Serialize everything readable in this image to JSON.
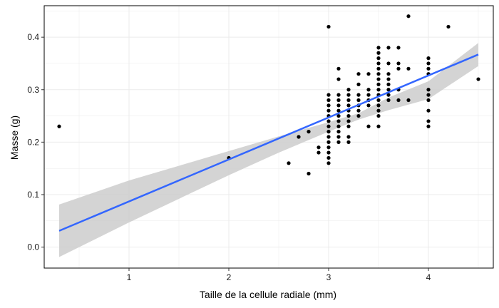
{
  "chart_data": {
    "type": "scatter",
    "title": "",
    "xlabel": "Taille de la cellule radiale (mm)",
    "ylabel": "Masse (g)",
    "xlim": [
      0.15,
      4.65
    ],
    "ylim": [
      -0.04,
      0.46
    ],
    "x_ticks": [
      1,
      2,
      3,
      4
    ],
    "y_ticks": [
      0.0,
      0.1,
      0.2,
      0.3,
      0.4
    ],
    "y_tick_labels": [
      "0.0",
      "0.1",
      "0.2",
      "0.3",
      "0.4"
    ],
    "grid": true,
    "legend": "none",
    "colors": {
      "points": "#000000",
      "fit_line": "#3366ff",
      "confidence_band": "#cccccc",
      "grid": "#ebebeb",
      "panel_border": "#000000"
    },
    "points": [
      [
        0.3,
        0.23
      ],
      [
        2.0,
        0.17
      ],
      [
        2.6,
        0.16
      ],
      [
        2.7,
        0.21
      ],
      [
        2.8,
        0.14
      ],
      [
        2.8,
        0.22
      ],
      [
        2.9,
        0.18
      ],
      [
        2.9,
        0.19
      ],
      [
        3.0,
        0.42
      ],
      [
        3.0,
        0.29
      ],
      [
        3.0,
        0.28
      ],
      [
        3.0,
        0.27
      ],
      [
        3.0,
        0.26
      ],
      [
        3.0,
        0.25
      ],
      [
        3.0,
        0.24
      ],
      [
        3.0,
        0.23
      ],
      [
        3.0,
        0.22
      ],
      [
        3.0,
        0.21
      ],
      [
        3.0,
        0.2
      ],
      [
        3.0,
        0.19
      ],
      [
        3.0,
        0.18
      ],
      [
        3.0,
        0.17
      ],
      [
        3.0,
        0.16
      ],
      [
        3.1,
        0.34
      ],
      [
        3.1,
        0.32
      ],
      [
        3.1,
        0.29
      ],
      [
        3.1,
        0.28
      ],
      [
        3.1,
        0.27
      ],
      [
        3.1,
        0.26
      ],
      [
        3.1,
        0.25
      ],
      [
        3.1,
        0.24
      ],
      [
        3.1,
        0.23
      ],
      [
        3.1,
        0.22
      ],
      [
        3.1,
        0.21
      ],
      [
        3.1,
        0.2
      ],
      [
        3.2,
        0.3
      ],
      [
        3.2,
        0.29
      ],
      [
        3.2,
        0.28
      ],
      [
        3.2,
        0.27
      ],
      [
        3.2,
        0.26
      ],
      [
        3.2,
        0.25
      ],
      [
        3.2,
        0.24
      ],
      [
        3.2,
        0.23
      ],
      [
        3.2,
        0.21
      ],
      [
        3.2,
        0.2
      ],
      [
        3.3,
        0.33
      ],
      [
        3.3,
        0.31
      ],
      [
        3.3,
        0.29
      ],
      [
        3.3,
        0.28
      ],
      [
        3.3,
        0.27
      ],
      [
        3.3,
        0.26
      ],
      [
        3.3,
        0.25
      ],
      [
        3.4,
        0.33
      ],
      [
        3.4,
        0.3
      ],
      [
        3.4,
        0.29
      ],
      [
        3.4,
        0.28
      ],
      [
        3.4,
        0.27
      ],
      [
        3.4,
        0.23
      ],
      [
        3.5,
        0.38
      ],
      [
        3.5,
        0.37
      ],
      [
        3.5,
        0.36
      ],
      [
        3.5,
        0.35
      ],
      [
        3.5,
        0.34
      ],
      [
        3.5,
        0.33
      ],
      [
        3.5,
        0.32
      ],
      [
        3.5,
        0.31
      ],
      [
        3.5,
        0.3
      ],
      [
        3.5,
        0.29
      ],
      [
        3.5,
        0.28
      ],
      [
        3.5,
        0.27
      ],
      [
        3.5,
        0.26
      ],
      [
        3.5,
        0.25
      ],
      [
        3.5,
        0.23
      ],
      [
        3.6,
        0.38
      ],
      [
        3.6,
        0.35
      ],
      [
        3.6,
        0.33
      ],
      [
        3.6,
        0.32
      ],
      [
        3.6,
        0.31
      ],
      [
        3.6,
        0.3
      ],
      [
        3.6,
        0.29
      ],
      [
        3.6,
        0.28
      ],
      [
        3.7,
        0.38
      ],
      [
        3.7,
        0.35
      ],
      [
        3.7,
        0.34
      ],
      [
        3.7,
        0.3
      ],
      [
        3.7,
        0.28
      ],
      [
        3.8,
        0.44
      ],
      [
        3.8,
        0.34
      ],
      [
        3.8,
        0.28
      ],
      [
        4.0,
        0.36
      ],
      [
        4.0,
        0.35
      ],
      [
        4.0,
        0.34
      ],
      [
        4.0,
        0.33
      ],
      [
        4.0,
        0.3
      ],
      [
        4.0,
        0.29
      ],
      [
        4.0,
        0.28
      ],
      [
        4.0,
        0.26
      ],
      [
        4.0,
        0.24
      ],
      [
        4.0,
        0.23
      ],
      [
        4.2,
        0.42
      ],
      [
        4.5,
        0.32
      ]
    ],
    "fit_line": [
      [
        0.3,
        0.031
      ],
      [
        4.5,
        0.367
      ]
    ],
    "confidence_band": {
      "x": [
        0.3,
        1.0,
        2.0,
        2.5,
        3.0,
        3.3,
        3.6,
        4.0,
        4.5
      ],
      "lower": [
        -0.019,
        0.047,
        0.137,
        0.18,
        0.22,
        0.243,
        0.261,
        0.282,
        0.345
      ],
      "upper": [
        0.081,
        0.127,
        0.183,
        0.211,
        0.238,
        0.255,
        0.285,
        0.316,
        0.389
      ]
    }
  }
}
